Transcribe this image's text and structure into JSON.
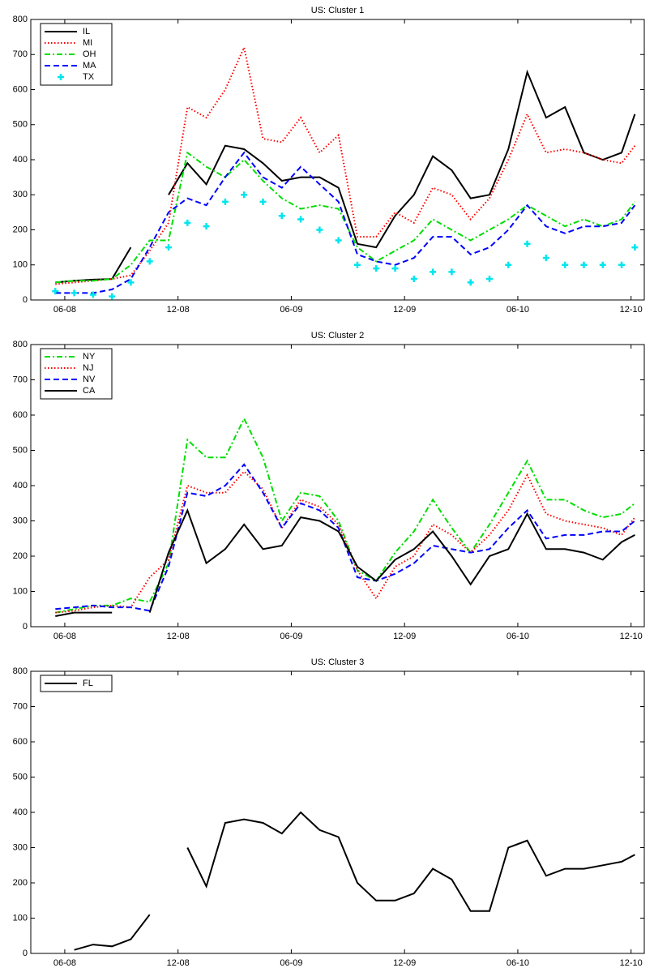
{
  "chart_data": [
    {
      "type": "line",
      "title": "US: Cluster 1",
      "x": [
        5.5,
        6.5,
        7.5,
        8.5,
        9.5,
        10.5,
        11.5,
        12.5,
        13.5,
        14.5,
        15.5,
        16.5,
        17.5,
        18.5,
        19.5,
        20.5,
        21.5,
        22.5,
        23.5,
        24.5,
        25.5,
        26.5,
        27.5,
        28.5,
        29.5,
        30.5,
        31.5,
        32.5,
        33.5,
        34.5,
        35.5,
        36.2
      ],
      "xlim": [
        4.2,
        36.7
      ],
      "ylim": [
        0,
        800
      ],
      "xticks": [
        {
          "value": 6,
          "label": "06-08"
        },
        {
          "value": 12,
          "label": "12-08"
        },
        {
          "value": 18,
          "label": "06-09"
        },
        {
          "value": 24,
          "label": "12-09"
        },
        {
          "value": 30,
          "label": "06-10"
        },
        {
          "value": 36,
          "label": "12-10"
        }
      ],
      "yticks": [
        0,
        100,
        200,
        300,
        400,
        500,
        600,
        700,
        800
      ],
      "legend": "upper left",
      "series": [
        {
          "name": "IL",
          "color": "#000000",
          "style": "solid",
          "values": [
            50,
            55,
            58,
            60,
            150,
            null,
            300,
            390,
            330,
            440,
            430,
            390,
            340,
            350,
            350,
            320,
            160,
            150,
            240,
            300,
            410,
            370,
            290,
            300,
            430,
            650,
            520,
            550,
            420,
            400,
            420,
            530
          ]
        },
        {
          "name": "MI",
          "color": "#ff0000",
          "style": "dotted",
          "values": [
            45,
            50,
            55,
            60,
            70,
            140,
            220,
            550,
            520,
            600,
            720,
            460,
            450,
            520,
            420,
            470,
            180,
            180,
            250,
            220,
            320,
            300,
            230,
            290,
            400,
            530,
            420,
            430,
            420,
            400,
            390,
            440
          ]
        },
        {
          "name": "OH",
          "color": "#00dd00",
          "style": "dashdot",
          "values": [
            50,
            55,
            55,
            60,
            100,
            170,
            170,
            420,
            380,
            350,
            400,
            340,
            290,
            260,
            270,
            260,
            150,
            110,
            140,
            170,
            230,
            200,
            170,
            200,
            230,
            270,
            240,
            210,
            230,
            210,
            230,
            280
          ]
        },
        {
          "name": "MA",
          "color": "#0000ff",
          "style": "dashed",
          "values": [
            20,
            20,
            20,
            30,
            60,
            150,
            250,
            290,
            270,
            350,
            420,
            350,
            320,
            380,
            330,
            280,
            130,
            110,
            100,
            120,
            180,
            180,
            130,
            150,
            200,
            270,
            210,
            190,
            210,
            210,
            220,
            270
          ]
        },
        {
          "name": "TX",
          "color": "#00e5ee",
          "style": "plus",
          "values": [
            25,
            20,
            15,
            10,
            50,
            110,
            150,
            220,
            210,
            280,
            300,
            280,
            240,
            230,
            200,
            170,
            100,
            90,
            90,
            60,
            80,
            80,
            50,
            60,
            100,
            160,
            120,
            100,
            100,
            100,
            100,
            150
          ]
        }
      ]
    },
    {
      "type": "line",
      "title": "US: Cluster 2",
      "x": [
        5.5,
        6.5,
        7.5,
        8.5,
        9.5,
        10.5,
        11.5,
        12.5,
        13.5,
        14.5,
        15.5,
        16.5,
        17.5,
        18.5,
        19.5,
        20.5,
        21.5,
        22.5,
        23.5,
        24.5,
        25.5,
        26.5,
        27.5,
        28.5,
        29.5,
        30.5,
        31.5,
        32.5,
        33.5,
        34.5,
        35.5,
        36.2
      ],
      "xlim": [
        4.2,
        36.7
      ],
      "ylim": [
        0,
        800
      ],
      "xticks": [
        {
          "value": 6,
          "label": "06-08"
        },
        {
          "value": 12,
          "label": "12-08"
        },
        {
          "value": 18,
          "label": "06-09"
        },
        {
          "value": 24,
          "label": "12-09"
        },
        {
          "value": 30,
          "label": "06-10"
        },
        {
          "value": 36,
          "label": "12-10"
        }
      ],
      "yticks": [
        0,
        100,
        200,
        300,
        400,
        500,
        600,
        700,
        800
      ],
      "legend": "upper left",
      "series": [
        {
          "name": "NY",
          "color": "#00dd00",
          "style": "dashdot",
          "values": [
            40,
            50,
            60,
            60,
            80,
            70,
            180,
            530,
            480,
            480,
            590,
            480,
            300,
            380,
            370,
            300,
            160,
            130,
            210,
            270,
            360,
            280,
            210,
            290,
            380,
            470,
            360,
            360,
            330,
            310,
            320,
            350
          ]
        },
        {
          "name": "NJ",
          "color": "#ff0000",
          "style": "dotted",
          "values": [
            40,
            45,
            55,
            60,
            55,
            140,
            190,
            400,
            380,
            380,
            440,
            390,
            280,
            360,
            340,
            290,
            160,
            80,
            170,
            200,
            290,
            260,
            210,
            260,
            330,
            430,
            320,
            300,
            290,
            280,
            260,
            310
          ]
        },
        {
          "name": "NV",
          "color": "#0000ff",
          "style": "dashed",
          "values": [
            50,
            55,
            60,
            55,
            55,
            45,
            170,
            380,
            370,
            400,
            460,
            380,
            280,
            350,
            330,
            280,
            140,
            130,
            150,
            180,
            230,
            220,
            210,
            220,
            280,
            330,
            250,
            260,
            260,
            270,
            270,
            300
          ]
        },
        {
          "name": "CA",
          "color": "#000000",
          "style": "solid",
          "values": [
            30,
            40,
            40,
            40,
            null,
            40,
            210,
            330,
            180,
            220,
            290,
            220,
            230,
            310,
            300,
            270,
            170,
            130,
            190,
            220,
            270,
            200,
            120,
            200,
            220,
            320,
            220,
            220,
            210,
            190,
            240,
            260
          ]
        }
      ]
    },
    {
      "type": "line",
      "title": "US: Cluster 3",
      "x": [
        5.5,
        6.5,
        7.5,
        8.5,
        9.5,
        10.5,
        11.5,
        12.5,
        13.5,
        14.5,
        15.5,
        16.5,
        17.5,
        18.5,
        19.5,
        20.5,
        21.5,
        22.5,
        23.5,
        24.5,
        25.5,
        26.5,
        27.5,
        28.5,
        29.5,
        30.5,
        31.5,
        32.5,
        33.5,
        34.5,
        35.5,
        36.2
      ],
      "xlim": [
        4.2,
        36.7
      ],
      "ylim": [
        0,
        800
      ],
      "xticks": [
        {
          "value": 6,
          "label": "06-08"
        },
        {
          "value": 12,
          "label": "12-08"
        },
        {
          "value": 18,
          "label": "06-09"
        },
        {
          "value": 24,
          "label": "12-09"
        },
        {
          "value": 30,
          "label": "06-10"
        },
        {
          "value": 36,
          "label": "12-10"
        }
      ],
      "yticks": [
        0,
        100,
        200,
        300,
        400,
        500,
        600,
        700,
        800
      ],
      "legend": "upper left",
      "series": [
        {
          "name": "FL",
          "color": "#000000",
          "style": "solid",
          "values": [
            null,
            10,
            25,
            20,
            40,
            110,
            null,
            300,
            190,
            370,
            380,
            370,
            340,
            400,
            350,
            330,
            200,
            150,
            150,
            170,
            240,
            210,
            120,
            120,
            300,
            320,
            220,
            240,
            240,
            250,
            260,
            280
          ]
        }
      ]
    }
  ]
}
